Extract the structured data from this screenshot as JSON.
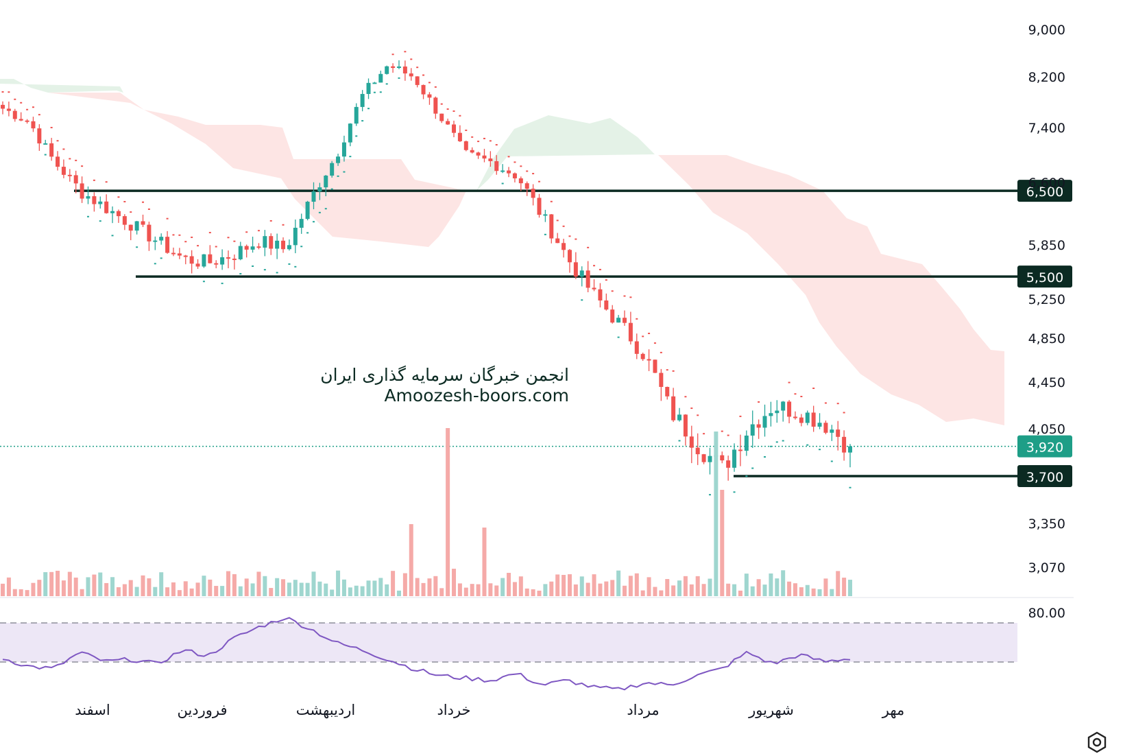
{
  "watermark": {
    "line1": "انجمن خبرگان سرمایه گذاری ایران",
    "line2": "Amoozesh-boors.com"
  },
  "colors": {
    "up": "#26a69a",
    "down": "#ef5350",
    "level_line": "#0b2a22",
    "last_price_badge": "#1e9e87",
    "cloud_bull": "#e4f2e7",
    "cloud_bear": "#fde5e4",
    "rsi_band": "#ede7f6",
    "rsi_line": "#7e57c2"
  },
  "chart_data": {
    "type": "candlestick",
    "price_axis": {
      "ticks": [
        "9,000",
        "8,200",
        "7,400",
        "6,600",
        "5,850",
        "5,250",
        "4,850",
        "4,450",
        "4,050",
        "3,350",
        "3,070"
      ],
      "ylim": [
        3000,
        9000
      ]
    },
    "horizontal_levels": [
      {
        "label": "6,500",
        "value": 6500
      },
      {
        "label": "5,500",
        "value": 5500
      },
      {
        "label": "3,700",
        "value": 3700
      }
    ],
    "last_price": {
      "label": "3,920",
      "value": 3920
    },
    "x_labels": [
      "اسفند",
      "فروردین",
      "اردیبهشت",
      "خرداد",
      "مرداد",
      "شهریور",
      "مهر"
    ],
    "indicators": [
      "ichimoku_cloud",
      "parabolic_sar",
      "volume",
      "rsi"
    ],
    "rsi_axis": {
      "ticks": [
        "80.00"
      ]
    },
    "price_path_keypoints": [
      7700,
      7500,
      6900,
      6500,
      6300,
      6100,
      5900,
      5700,
      5650,
      5750,
      5900,
      5800,
      6400,
      7000,
      7900,
      8400,
      8200,
      7600,
      7000,
      6900,
      6700,
      6200,
      5700,
      5300,
      5000,
      4700,
      4200,
      3950,
      3750,
      4050,
      4250,
      4200,
      4100,
      3920
    ],
    "volume_spikes": [
      "اردیبهشت",
      "مرداد"
    ],
    "rsi_range": [
      30,
      80
    ]
  }
}
